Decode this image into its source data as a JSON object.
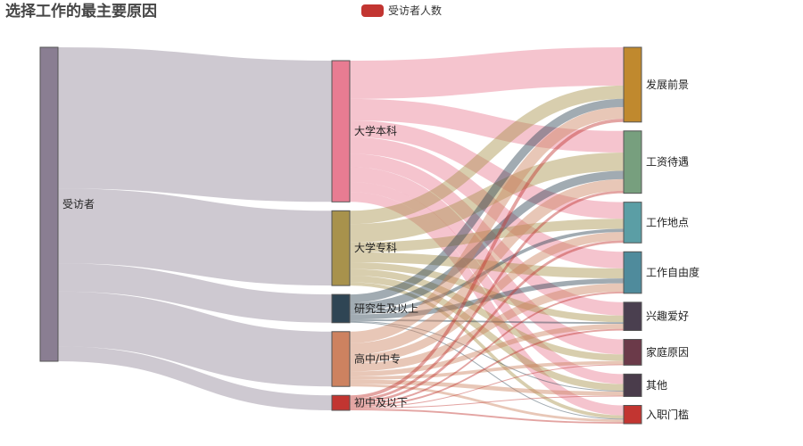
{
  "chart_data": {
    "type": "sankey",
    "title": "选择工作的最主要原因",
    "legend": {
      "label": "受访者人数",
      "color": "#c23531",
      "placement": "top-center"
    },
    "nodes": [
      {
        "name": "受访者",
        "color": "#8a7e92"
      },
      {
        "name": "大学本科",
        "color": "#e87c92"
      },
      {
        "name": "大学专科",
        "color": "#a8924c"
      },
      {
        "name": "研究生及以上",
        "color": "#2f4554"
      },
      {
        "name": "高中/中专",
        "color": "#cd8260"
      },
      {
        "name": "初中及以下",
        "color": "#c23531"
      },
      {
        "name": "发展前景",
        "color": "#c0892e"
      },
      {
        "name": "工资待遇",
        "color": "#779f7e"
      },
      {
        "name": "工作地点",
        "color": "#5b9ea5"
      },
      {
        "name": "工作自由度",
        "color": "#4f8b9c"
      },
      {
        "name": "兴趣爱好",
        "color": "#4a3f4f"
      },
      {
        "name": "家庭原因",
        "color": "#6b3a49"
      },
      {
        "name": "其他",
        "color": "#4a3c4b"
      },
      {
        "name": "入职门槛",
        "color": "#c23531"
      }
    ],
    "links": [
      {
        "source": "受访者",
        "target": "大学本科",
        "value": 170
      },
      {
        "source": "受访者",
        "target": "大学专科",
        "value": 90
      },
      {
        "source": "受访者",
        "target": "研究生及以上",
        "value": 34
      },
      {
        "source": "受访者",
        "target": "高中/中专",
        "value": 66
      },
      {
        "source": "受访者",
        "target": "初中及以下",
        "value": 18
      },
      {
        "source": "大学本科",
        "target": "发展前景",
        "value": 46
      },
      {
        "source": "大学本科",
        "target": "工资待遇",
        "value": 26
      },
      {
        "source": "大学本科",
        "target": "工作地点",
        "value": 20
      },
      {
        "source": "大学本科",
        "target": "工作自由度",
        "value": 20
      },
      {
        "source": "大学本科",
        "target": "兴趣爱好",
        "value": 16
      },
      {
        "source": "大学本科",
        "target": "家庭原因",
        "value": 18
      },
      {
        "source": "大学本科",
        "target": "其他",
        "value": 12
      },
      {
        "source": "大学本科",
        "target": "入职门槛",
        "value": 12
      },
      {
        "source": "大学专科",
        "target": "发展前景",
        "value": 16
      },
      {
        "source": "大学专科",
        "target": "工资待遇",
        "value": 22
      },
      {
        "source": "大学专科",
        "target": "工作地点",
        "value": 12
      },
      {
        "source": "大学专科",
        "target": "工作自由度",
        "value": 12
      },
      {
        "source": "大学专科",
        "target": "兴趣爱好",
        "value": 8
      },
      {
        "source": "大学专科",
        "target": "家庭原因",
        "value": 8
      },
      {
        "source": "大学专科",
        "target": "其他",
        "value": 8
      },
      {
        "source": "大学专科",
        "target": "入职门槛",
        "value": 4
      },
      {
        "source": "研究生及以上",
        "target": "发展前景",
        "value": 10
      },
      {
        "source": "研究生及以上",
        "target": "工资待遇",
        "value": 10
      },
      {
        "source": "研究生及以上",
        "target": "工作地点",
        "value": 4
      },
      {
        "source": "研究生及以上",
        "target": "工作自由度",
        "value": 6
      },
      {
        "source": "研究生及以上",
        "target": "兴趣爱好",
        "value": 2
      },
      {
        "source": "研究生及以上",
        "target": "其他",
        "value": 1
      },
      {
        "source": "研究生及以上",
        "target": "入职门槛",
        "value": 1
      },
      {
        "source": "高中/中专",
        "target": "发展前景",
        "value": 14
      },
      {
        "source": "高中/中专",
        "target": "工资待遇",
        "value": 14
      },
      {
        "source": "高中/中专",
        "target": "工作地点",
        "value": 10
      },
      {
        "source": "高中/中专",
        "target": "工作自由度",
        "value": 10
      },
      {
        "source": "高中/中专",
        "target": "兴趣爱好",
        "value": 6
      },
      {
        "source": "高中/中专",
        "target": "家庭原因",
        "value": 4
      },
      {
        "source": "高中/中专",
        "target": "其他",
        "value": 5
      },
      {
        "source": "高中/中专",
        "target": "入职门槛",
        "value": 3
      },
      {
        "source": "初中及以下",
        "target": "发展前景",
        "value": 4
      },
      {
        "source": "初中及以下",
        "target": "工资待遇",
        "value": 3
      },
      {
        "source": "初中及以下",
        "target": "工作地点",
        "value": 3
      },
      {
        "source": "初中及以下",
        "target": "工作自由度",
        "value": 2
      },
      {
        "source": "初中及以下",
        "target": "兴趣爱好",
        "value": 2
      },
      {
        "source": "初中及以下",
        "target": "家庭原因",
        "value": 1
      },
      {
        "source": "初中及以下",
        "target": "其他",
        "value": 1
      },
      {
        "source": "初中及以下",
        "target": "入职门槛",
        "value": 2
      }
    ]
  }
}
